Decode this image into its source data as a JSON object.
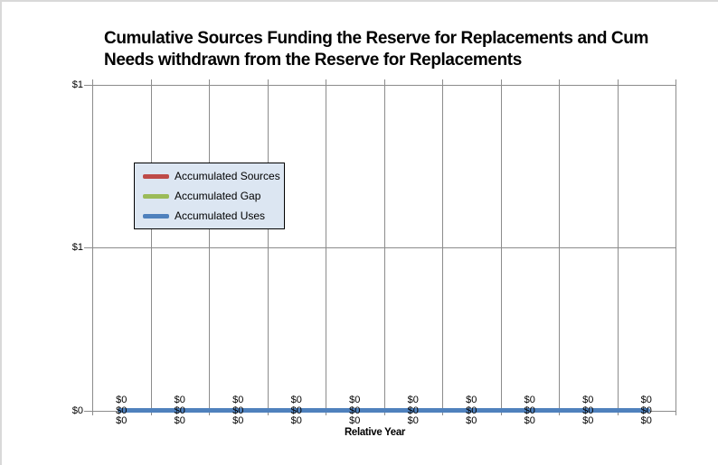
{
  "window": {
    "background_color": "#ffffff",
    "frame_border_color": "#d9d9d9"
  },
  "chart_data": {
    "type": "line",
    "title_line1": "Cumulative Sources Funding the Reserve for Replacements and Cum",
    "title_line2": "Needs withdrawn from the Reserve for Replacements",
    "xlabel": "Relative Year",
    "ylabel": "",
    "y_axis": {
      "tick_labels": [
        "$1",
        "$1",
        "$0"
      ],
      "min": 0,
      "max": 1
    },
    "x_axis": {
      "num_categories": 10,
      "tick_labels_visible": false
    },
    "grid": {
      "vertical": true,
      "horizontal": true,
      "color": "#8c8c8c"
    },
    "legend": {
      "position": "inside-upper-left",
      "background_color": "#dce6f2",
      "border_color": "#000000"
    },
    "series": [
      {
        "name": "Accumulated Sources",
        "color": "#be4b48",
        "values": [
          0,
          0,
          0,
          0,
          0,
          0,
          0,
          0,
          0,
          0
        ],
        "data_label": "$0"
      },
      {
        "name": "Accumulated Gap",
        "color": "#9bbb59",
        "values": [
          0,
          0,
          0,
          0,
          0,
          0,
          0,
          0,
          0,
          0
        ],
        "data_label": "$0"
      },
      {
        "name": "Accumulated Uses",
        "color": "#4f81bd",
        "values": [
          0,
          0,
          0,
          0,
          0,
          0,
          0,
          0,
          0,
          0
        ],
        "data_label": "$0"
      }
    ],
    "plotted_line_color": "#4f81bd"
  }
}
